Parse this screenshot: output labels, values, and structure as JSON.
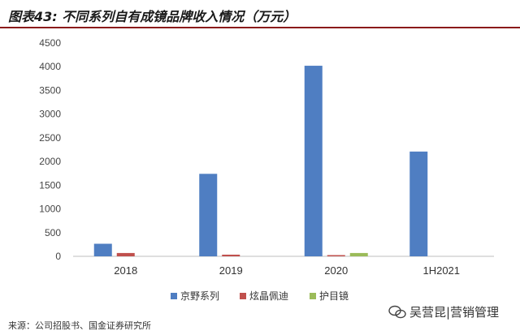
{
  "title": "图表43: 不同系列自有成镜品牌收入情况（万元）",
  "source": "来源：公司招股书、国金证券研究所",
  "watermark": "吴营昆|营销管理",
  "chart_data": {
    "type": "bar",
    "title": "图表43: 不同系列自有成镜品牌收入情况（万元）",
    "categories": [
      "2018",
      "2019",
      "2020",
      "1H2021"
    ],
    "series": [
      {
        "name": "京野系列",
        "color": "#4f7ec2",
        "values": [
          265,
          1740,
          4020,
          2210
        ]
      },
      {
        "name": "炫晶佩迪",
        "color": "#c0504d",
        "values": [
          70,
          35,
          8,
          0
        ]
      },
      {
        "name": "护目镜",
        "color": "#9bbb59",
        "values": [
          0,
          0,
          70,
          0
        ]
      }
    ],
    "yticks": [
      "0",
      "500",
      "1000",
      "1500",
      "2000",
      "2500",
      "3000",
      "3500",
      "4000",
      "4500"
    ],
    "ylim": [
      0,
      4500
    ],
    "legend": "bottom",
    "grid": false
  }
}
